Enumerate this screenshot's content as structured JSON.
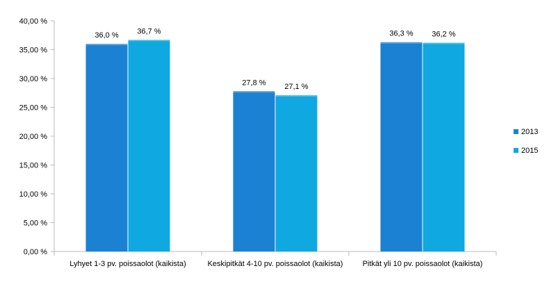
{
  "chart_data": {
    "type": "bar",
    "title": "",
    "xlabel": "",
    "ylabel": "",
    "categories": [
      "Lyhyet 1-3 pv. poissaolot (kaikista)",
      "Keskipitkät 4-10 pv. poissaolot (kaikista)",
      "Pitkät yli 10 pv. poissaolot (kaikista)"
    ],
    "series": [
      {
        "name": "2013",
        "color": "#1b81d3",
        "values": [
          36.0,
          27.8,
          36.3
        ],
        "labels": [
          "36,0 %",
          "27,8 %",
          "36,3 %"
        ]
      },
      {
        "name": "2015",
        "color": "#0fa8e1",
        "values": [
          36.7,
          27.1,
          36.2
        ],
        "labels": [
          "36,7 %",
          "27,1 %",
          "36,2 %"
        ]
      }
    ],
    "ylim": [
      0,
      40
    ],
    "yticks": [
      0,
      5,
      10,
      15,
      20,
      25,
      30,
      35,
      40
    ],
    "ytick_labels": [
      "0,00 %",
      "5,00 %",
      "10,00 %",
      "15,00 %",
      "20,00 %",
      "25,00 %",
      "30,00 %",
      "35,00 %",
      "40,00 %"
    ],
    "grid": false,
    "legend_position": "right"
  }
}
